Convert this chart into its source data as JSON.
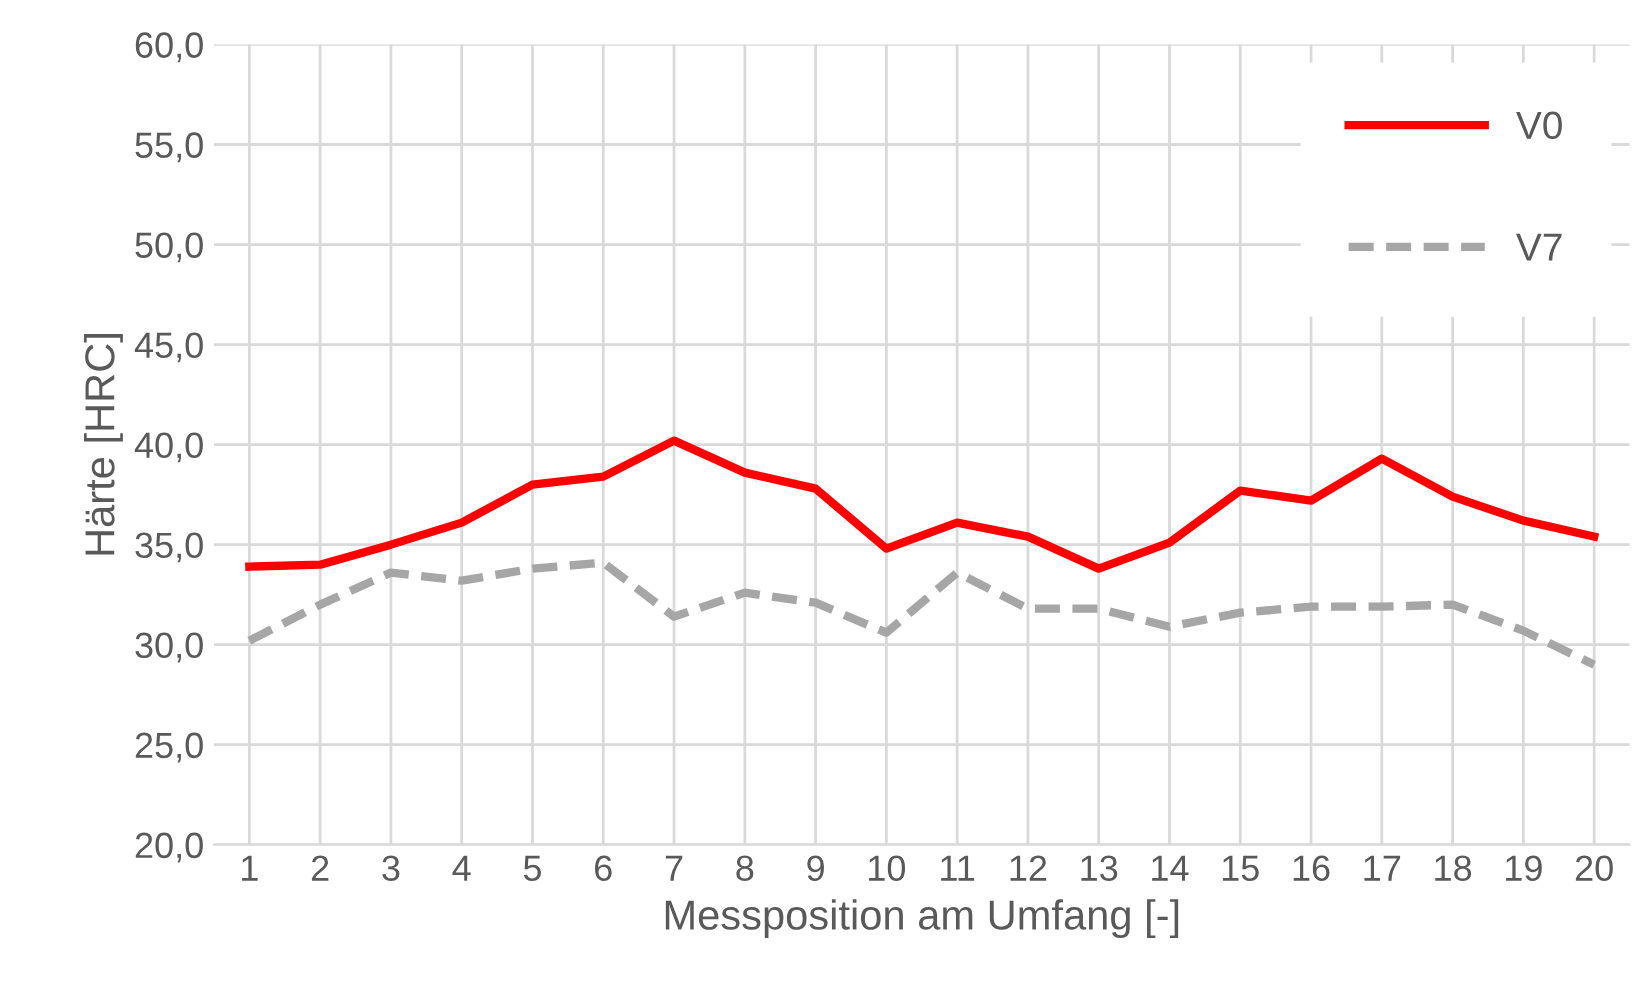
{
  "chart_data": {
    "type": "line",
    "xlabel": "Messposition am Umfang [-]",
    "ylabel": "Härte [HRC]",
    "categories": [
      "1",
      "2",
      "3",
      "4",
      "5",
      "6",
      "7",
      "8",
      "9",
      "10",
      "11",
      "12",
      "13",
      "14",
      "15",
      "16",
      "17",
      "18",
      "19",
      "20"
    ],
    "series": [
      {
        "name": "V0",
        "color": "#ff0000",
        "line_style": "solid",
        "values": [
          33.9,
          34.0,
          35.0,
          36.1,
          38.0,
          38.4,
          40.2,
          38.6,
          37.8,
          34.8,
          36.1,
          35.4,
          33.8,
          35.1,
          37.7,
          37.2,
          39.3,
          37.4,
          36.2,
          35.4
        ]
      },
      {
        "name": "V7",
        "color": "#a6a6a6",
        "line_style": "dashed",
        "values": [
          30.2,
          32.0,
          33.6,
          33.2,
          33.8,
          34.1,
          31.4,
          32.6,
          32.1,
          30.6,
          33.6,
          31.8,
          31.8,
          30.9,
          31.6,
          31.9,
          31.9,
          32.0,
          30.7,
          29.0
        ]
      }
    ],
    "ylim": [
      20,
      60
    ],
    "yticks": [
      {
        "value": 20,
        "label": "20,0"
      },
      {
        "value": 25,
        "label": "25,0"
      },
      {
        "value": 30,
        "label": "30,0"
      },
      {
        "value": 35,
        "label": "35,0"
      },
      {
        "value": 40,
        "label": "40,0"
      },
      {
        "value": 45,
        "label": "45,0"
      },
      {
        "value": 50,
        "label": "50,0"
      },
      {
        "value": 55,
        "label": "55,0"
      },
      {
        "value": 60,
        "label": "60,0"
      }
    ],
    "grid": true,
    "legend": "top right",
    "marker": "none"
  }
}
